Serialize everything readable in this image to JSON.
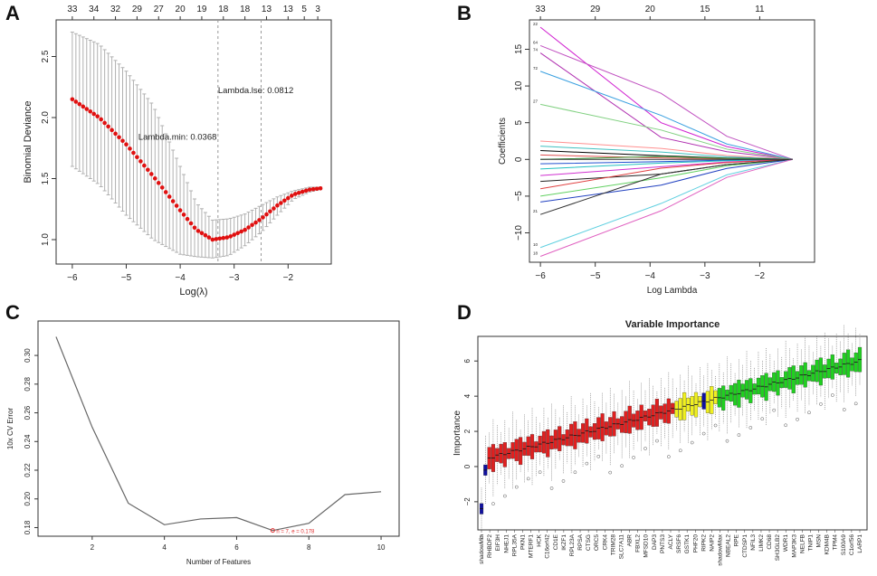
{
  "panels": {
    "A": {
      "letter": "A"
    },
    "B": {
      "letter": "B"
    },
    "C": {
      "letter": "C"
    },
    "D": {
      "letter": "D"
    }
  },
  "chart_data": [
    {
      "id": "A",
      "type": "line",
      "title": "",
      "xlabel": "Log(λ)",
      "ylabel": "Binomial Deviance",
      "xlim": [
        -6.3,
        -1.2
      ],
      "ylim": [
        0.8,
        2.8
      ],
      "xticks": [
        -6,
        -5,
        -4,
        -3,
        -2
      ],
      "xtick_labels": [
        "−6",
        "−5",
        "−4",
        "−3",
        "−2"
      ],
      "yticks": [
        1.0,
        1.5,
        2.0,
        2.5
      ],
      "ytick_labels": [
        "1.0",
        "1.5",
        "2.0",
        "2.5"
      ],
      "top_axis": {
        "positions": [
          -6.0,
          -5.6,
          -5.2,
          -4.8,
          -4.4,
          -4.0,
          -3.6,
          -3.2,
          -2.8,
          -2.4,
          -2.0,
          -1.7,
          -1.45
        ],
        "labels": [
          "33",
          "34",
          "32",
          "29",
          "27",
          "20",
          "19",
          "18",
          "18",
          "13",
          "13",
          "5",
          "3"
        ]
      },
      "curve_x": [
        -6.0,
        -5.5,
        -5.0,
        -4.5,
        -4.0,
        -3.7,
        -3.4,
        -3.1,
        -2.8,
        -2.5,
        -2.2,
        -1.9,
        -1.6,
        -1.4
      ],
      "curve_y": [
        2.15,
        2.0,
        1.78,
        1.52,
        1.24,
        1.08,
        1.0,
        1.02,
        1.08,
        1.17,
        1.28,
        1.37,
        1.41,
        1.42
      ],
      "err_upper": [
        2.7,
        2.6,
        2.38,
        2.1,
        1.6,
        1.3,
        1.16,
        1.17,
        1.21,
        1.28,
        1.35,
        1.4,
        1.43,
        1.43
      ],
      "err_lower": [
        1.6,
        1.45,
        1.2,
        1.0,
        0.88,
        0.86,
        0.85,
        0.87,
        0.95,
        1.06,
        1.2,
        1.33,
        1.39,
        1.41
      ],
      "vlines": [
        -3.3,
        -2.5
      ],
      "annotations": [
        {
          "text": "Lambda.lse: 0.0812",
          "x": -2.6,
          "y": 2.2
        },
        {
          "text": "Lambda.min: 0.0368",
          "x": -4.05,
          "y": 1.82
        }
      ],
      "colors": {
        "curve": "#e01010",
        "bars": "#b0b0b0",
        "vline": "#999999"
      }
    },
    {
      "id": "B",
      "type": "line",
      "xlabel": "Log Lambda",
      "ylabel": "Coefficients",
      "xlim": [
        -6.2,
        -1.0
      ],
      "ylim": [
        -14,
        19
      ],
      "xticks": [
        -6,
        -5,
        -4,
        -3,
        -2
      ],
      "xtick_labels": [
        "−6",
        "−5",
        "−4",
        "−3",
        "−2"
      ],
      "yticks": [
        -10,
        -5,
        0,
        5,
        10,
        15
      ],
      "ytick_labels": [
        "−10",
        "−5",
        "0",
        "5",
        "10",
        "15"
      ],
      "top_axis": {
        "positions": [
          -6.0,
          -5.0,
          -4.0,
          -3.0,
          -2.0
        ],
        "labels": [
          "33",
          "29",
          "20",
          "15",
          "11"
        ]
      },
      "end_x": -1.4,
      "series": [
        {
          "start": 18.0,
          "mid": 5.0,
          "color": "#d020d0"
        },
        {
          "start": 15.5,
          "mid": 9.0,
          "color": "#c050c0"
        },
        {
          "start": 14.5,
          "mid": 3.0,
          "color": "#b030b0"
        },
        {
          "start": 12.0,
          "mid": 6.0,
          "color": "#3aa0e0"
        },
        {
          "start": 7.5,
          "mid": 4.0,
          "color": "#80d080"
        },
        {
          "start": 2.5,
          "mid": 1.5,
          "color": "#ff9090"
        },
        {
          "start": 1.8,
          "mid": 1.0,
          "color": "#40c0c0"
        },
        {
          "start": 1.2,
          "mid": 0.5,
          "color": "#000000"
        },
        {
          "start": 0.6,
          "mid": 0.2,
          "color": "#e05050"
        },
        {
          "start": 0.0,
          "mid": 0.4,
          "color": "#3a9a3a"
        },
        {
          "start": -0.6,
          "mid": -0.3,
          "color": "#2050d0"
        },
        {
          "start": -1.3,
          "mid": -0.5,
          "color": "#20c0c0"
        },
        {
          "start": -2.2,
          "mid": -1.0,
          "color": "#d030d0"
        },
        {
          "start": -3.0,
          "mid": -2.0,
          "color": "#222222"
        },
        {
          "start": -4.0,
          "mid": -1.2,
          "color": "#e04040"
        },
        {
          "start": -5.0,
          "mid": -2.5,
          "color": "#60d060"
        },
        {
          "start": -5.8,
          "mid": -3.5,
          "color": "#2040c0"
        },
        {
          "start": -7.5,
          "mid": -2.0,
          "color": "#303030"
        },
        {
          "start": -12.0,
          "mid": -6.0,
          "color": "#60d0e0"
        },
        {
          "start": -13.2,
          "mid": -7.0,
          "color": "#e060c0"
        }
      ],
      "left_labels": [
        "22",
        "64",
        "74",
        "72",
        "27",
        "10",
        "18",
        "21"
      ]
    },
    {
      "id": "C",
      "type": "line",
      "xlabel": "Number of Features",
      "ylabel": "10x CV Error",
      "xlim": [
        0.5,
        10.5
      ],
      "ylim": [
        0.174,
        0.324
      ],
      "xticks": [
        2,
        4,
        6,
        8,
        10
      ],
      "xtick_labels": [
        "2",
        "4",
        "6",
        "8",
        "10"
      ],
      "yticks": [
        0.18,
        0.2,
        0.22,
        0.24,
        0.26,
        0.28,
        0.3
      ],
      "ytick_labels": [
        "0.18",
        "0.20",
        "0.22",
        "0.24",
        "0.26",
        "0.28",
        "0.30"
      ],
      "x": [
        1,
        2,
        3,
        4,
        5,
        6,
        7,
        8,
        9,
        10
      ],
      "values": [
        0.313,
        0.25,
        0.197,
        0.182,
        0.186,
        0.187,
        0.178,
        0.183,
        0.203,
        0.205
      ],
      "annotation": {
        "text": "n = 7, e = 0.178",
        "x": 7,
        "y": 0.178
      },
      "colors": {
        "line": "#666666",
        "annotation": "#e03030"
      }
    },
    {
      "id": "D",
      "type": "box",
      "title": "Variable Importance",
      "xlabel": "",
      "ylabel": "Importance",
      "ylim": [
        -3.6,
        7.4
      ],
      "yticks": [
        -2,
        0,
        2,
        4,
        6
      ],
      "ytick_labels": [
        "−2",
        "0",
        "2",
        "4",
        "6"
      ],
      "category_labels": [
        "shadowMin",
        "RHBDF2",
        "EIF3H",
        "NHEJ1",
        "RPL35A",
        "PKN1",
        "MTERF1",
        "HCK",
        "C16orf42",
        "CD1E",
        "IKZF1",
        "RPL23A",
        "RPSA",
        "CTSG",
        "ORC5",
        "CRK4",
        "TRIM28",
        "SLC7A11",
        "ABR",
        "FBXL2",
        "MFSD10",
        "DAP3",
        "PNTS3",
        "ACLY",
        "SRSF6",
        "GSTK1",
        "PHF20",
        "RIPK2",
        "NAIP2",
        "shadowMax",
        "NBEAL2",
        "RPE",
        "CTDSP1",
        "NFIL3",
        "LIMK2",
        "CD68",
        "SH3GLB2",
        "WDR1",
        "MAP3K3",
        "NELFB",
        "TNIP1",
        "MSN",
        "KDM4B",
        "TPM4",
        "S100A9",
        "C1orf56",
        "LARP1"
      ],
      "n_boxes": 98,
      "colors": {
        "rejected": "#e02020",
        "tentative": "#f0f020",
        "confirmed": "#20d020",
        "shadow": "#1010a0"
      }
    }
  ]
}
